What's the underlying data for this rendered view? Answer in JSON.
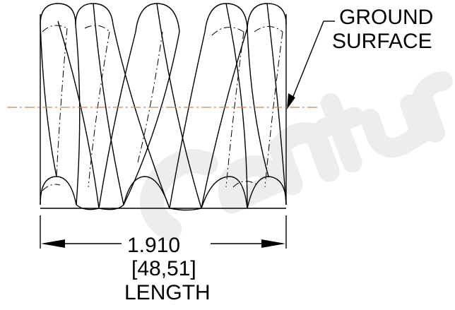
{
  "callout": {
    "line1": "GROUND",
    "line2": "SURFACE"
  },
  "dimension": {
    "value": "1.910",
    "metric": "[48,51]",
    "label": "LENGTH"
  },
  "watermark": {
    "text": "Century",
    "color": "#e8e8e8"
  },
  "colors": {
    "centerline": "#c9895a",
    "linework": "#000000"
  }
}
